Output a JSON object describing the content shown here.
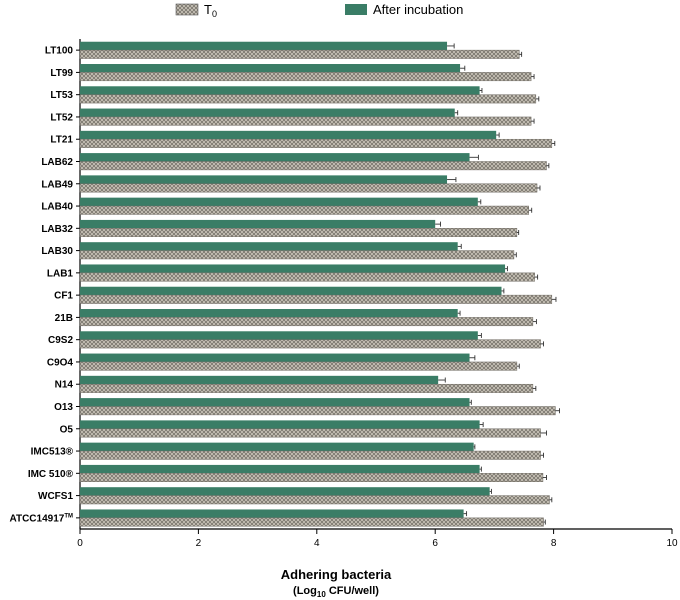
{
  "chart_data": {
    "type": "bar",
    "orientation": "horizontal",
    "categories": [
      "LT100",
      "LT99",
      "LT53",
      "LT52",
      "LT21",
      "LAB62",
      "LAB49",
      "LAB40",
      "LAB32",
      "LAB30",
      "LAB1",
      "CF1",
      "21B",
      "C9S2",
      "C9O4",
      "N14",
      "O13",
      "O5",
      "IMC513®",
      "IMC 510®",
      "WCFS1",
      "ATCC14917TM"
    ],
    "series": [
      {
        "name": "T0",
        "name_base": "T",
        "name_subscript": "0",
        "color": "#b9b2a6",
        "pattern": "crosshatch",
        "values": [
          7.42,
          7.62,
          7.7,
          7.62,
          7.97,
          7.88,
          7.72,
          7.58,
          7.38,
          7.33,
          7.68,
          7.97,
          7.65,
          7.78,
          7.38,
          7.65,
          8.03,
          7.78,
          7.78,
          7.82,
          7.93,
          7.83
        ],
        "errors": [
          0.04,
          0.05,
          0.05,
          0.05,
          0.05,
          0.04,
          0.05,
          0.05,
          0.03,
          0.04,
          0.05,
          0.07,
          0.06,
          0.05,
          0.04,
          0.05,
          0.07,
          0.1,
          0.05,
          0.06,
          0.04,
          0.03
        ]
      },
      {
        "name": "After incubation",
        "color": "#3a7d66",
        "pattern": "solid",
        "values": [
          6.2,
          6.42,
          6.75,
          6.33,
          7.03,
          6.58,
          6.2,
          6.72,
          6.0,
          6.38,
          7.18,
          7.12,
          6.38,
          6.72,
          6.58,
          6.05,
          6.58,
          6.75,
          6.65,
          6.75,
          6.92,
          6.48
        ],
        "errors": [
          0.12,
          0.08,
          0.04,
          0.05,
          0.05,
          0.15,
          0.15,
          0.05,
          0.09,
          0.06,
          0.04,
          0.04,
          0.04,
          0.06,
          0.09,
          0.12,
          0.03,
          0.06,
          0.02,
          0.03,
          0.03,
          0.05
        ]
      }
    ],
    "xlim": [
      0,
      10
    ],
    "xticks": [
      0,
      2,
      4,
      6,
      8,
      10
    ],
    "xlabel": "Adhering bacteria",
    "xlabel_sub_prefix": "(Log",
    "xlabel_sub_subscript": "10",
    "xlabel_sub_suffix": " CFU/well)",
    "legend_position": "top",
    "grid": false
  }
}
